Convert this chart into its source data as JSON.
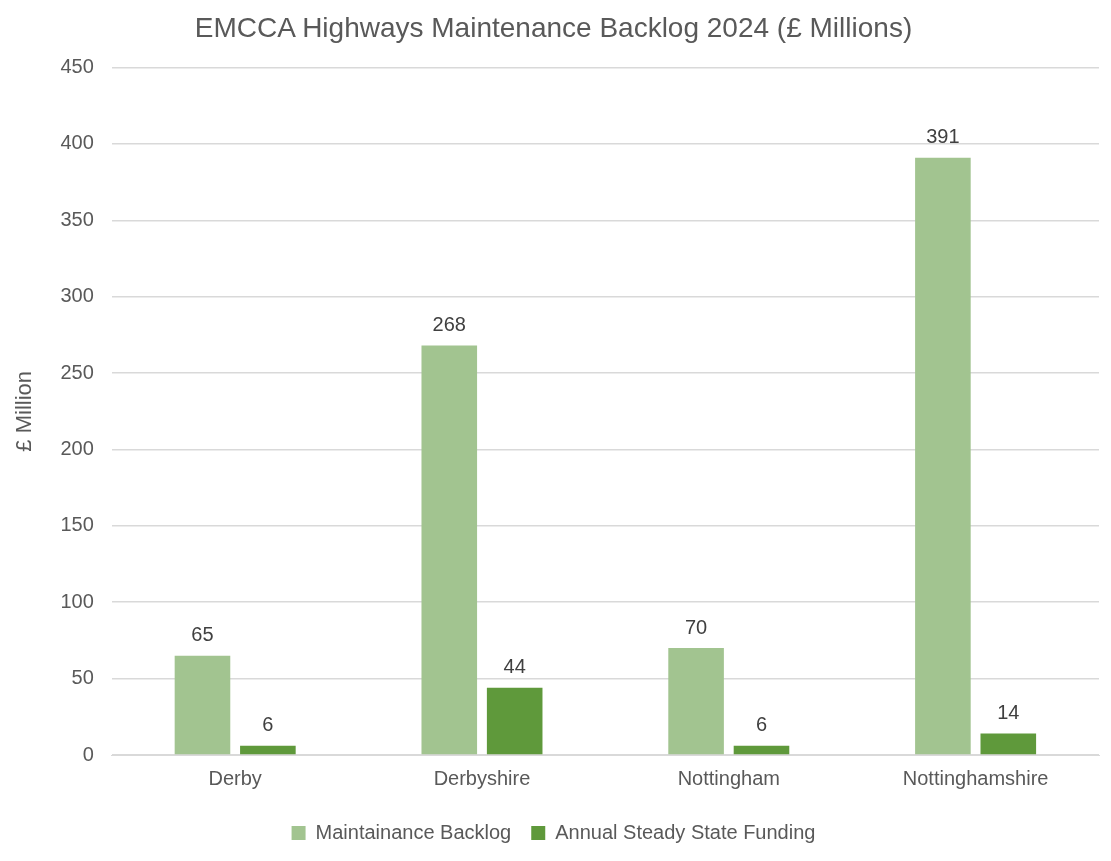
{
  "chart_data": {
    "type": "bar",
    "title": "EMCCA Highways Maintenance Backlog 2024 (£ Millions)",
    "ylabel": "£ Million",
    "categories": [
      "Derby",
      "Derbyshire",
      "Nottingham",
      "Nottinghamshire"
    ],
    "series": [
      {
        "name": "Maintainance Backlog",
        "color": "#a2c490",
        "values": [
          65,
          268,
          70,
          391
        ]
      },
      {
        "name": "Annual Steady State Funding",
        "color": "#5f993b",
        "values": [
          6,
          44,
          6,
          14
        ]
      }
    ],
    "ylim": [
      0,
      450
    ],
    "yticks": [
      0,
      50,
      100,
      150,
      200,
      250,
      300,
      350,
      400,
      450
    ],
    "grid": "y",
    "legend": "bottom",
    "data_labels": true
  }
}
